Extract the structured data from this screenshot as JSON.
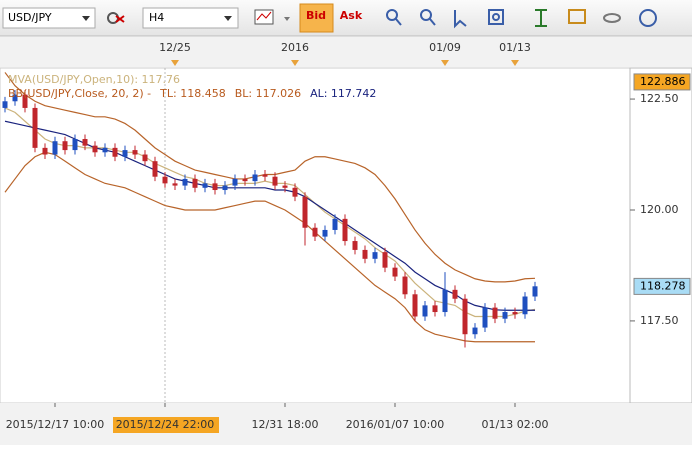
{
  "toolbar": {
    "symbol": "USD/JPY",
    "period": "H4",
    "bid": "Bid",
    "ask": "Ask"
  },
  "chart_data": {
    "type": "candlestick",
    "legend": [
      {
        "text": "MVA(USD/JPY,Open,10): 117.76",
        "color": "#cbb37c"
      }
    ],
    "legend2": [
      {
        "text": "BB(USD/JPY,Close, 20, 2) -",
        "color": "#b85a1e"
      },
      {
        "text": "TL: 118.458",
        "color": "#b85a1e"
      },
      {
        "text": "BL: 117.026",
        "color": "#b85a1e"
      },
      {
        "text": "AL: 117.742",
        "color": "#1a237e"
      }
    ],
    "categories": [
      null,
      null,
      null,
      null,
      null,
      "2015/12/17 10:00",
      null,
      null,
      null,
      null,
      null,
      null,
      null,
      null,
      null,
      null,
      "2015/12/24 22:00",
      null,
      null,
      null,
      null,
      null,
      null,
      null,
      null,
      null,
      null,
      null,
      "12/31 18:00",
      null,
      null,
      null,
      null,
      null,
      null,
      null,
      null,
      null,
      null,
      "2016/01/07 10:00",
      null,
      null,
      null,
      null,
      null,
      null,
      null,
      null,
      null,
      null,
      null,
      "01/13 02:00",
      null,
      null
    ],
    "top_categories": [
      null,
      null,
      null,
      null,
      null,
      null,
      null,
      null,
      null,
      null,
      null,
      null,
      null,
      null,
      null,
      null,
      null,
      "12/25",
      null,
      null,
      null,
      null,
      null,
      null,
      null,
      null,
      null,
      null,
      null,
      "2016",
      null,
      null,
      null,
      null,
      null,
      null,
      null,
      null,
      null,
      null,
      null,
      null,
      null,
      null,
      "01/09",
      null,
      null,
      null,
      null,
      null,
      null,
      "01/13",
      null,
      null
    ],
    "selected": 16,
    "open": [
      122.3,
      122.45,
      122.6,
      122.3,
      121.4,
      121.25,
      121.55,
      121.35,
      121.6,
      121.45,
      121.3,
      121.4,
      121.2,
      121.35,
      121.25,
      121.1,
      120.75,
      120.6,
      120.55,
      120.7,
      120.5,
      120.6,
      120.45,
      120.55,
      120.7,
      120.65,
      120.8,
      120.75,
      120.55,
      120.5,
      120.3,
      119.6,
      119.4,
      119.55,
      119.8,
      119.3,
      119.1,
      118.9,
      119.05,
      118.7,
      118.5,
      118.1,
      117.6,
      117.85,
      117.7,
      118.2,
      118.0,
      117.2,
      117.35,
      117.8,
      117.55,
      117.7,
      117.65,
      118.05
    ],
    "high": [
      122.55,
      122.7,
      122.7,
      122.4,
      121.5,
      121.65,
      121.65,
      121.7,
      121.7,
      121.55,
      121.5,
      121.5,
      121.45,
      121.45,
      121.35,
      121.2,
      120.85,
      120.7,
      120.8,
      120.8,
      120.7,
      120.7,
      120.65,
      120.8,
      120.8,
      120.9,
      120.9,
      120.85,
      120.65,
      120.6,
      120.4,
      119.7,
      119.65,
      119.9,
      119.9,
      119.4,
      119.2,
      119.15,
      119.15,
      118.8,
      118.6,
      118.2,
      117.95,
      117.95,
      118.6,
      118.3,
      118.1,
      117.45,
      117.9,
      117.9,
      117.8,
      117.8,
      118.15,
      118.38
    ],
    "low": [
      122.2,
      122.35,
      122.2,
      121.3,
      121.15,
      121.15,
      121.25,
      121.25,
      121.35,
      121.2,
      121.2,
      121.1,
      121.1,
      121.15,
      121.0,
      120.65,
      120.5,
      120.45,
      120.45,
      120.4,
      120.4,
      120.35,
      120.35,
      120.45,
      120.55,
      120.55,
      120.65,
      120.45,
      120.4,
      120.2,
      119.2,
      119.3,
      119.3,
      119.45,
      119.2,
      119.0,
      118.8,
      118.8,
      118.6,
      118.4,
      118.0,
      117.5,
      117.5,
      117.6,
      117.6,
      117.9,
      116.9,
      117.1,
      117.25,
      117.45,
      117.45,
      117.55,
      117.55,
      117.95
    ],
    "close": [
      122.45,
      122.6,
      122.3,
      121.4,
      121.25,
      121.55,
      121.35,
      121.6,
      121.45,
      121.3,
      121.4,
      121.2,
      121.35,
      121.25,
      121.1,
      120.75,
      120.6,
      120.55,
      120.7,
      120.5,
      120.6,
      120.45,
      120.55,
      120.7,
      120.65,
      120.8,
      120.75,
      120.55,
      120.5,
      120.3,
      119.6,
      119.4,
      119.55,
      119.8,
      119.3,
      119.1,
      118.9,
      119.05,
      118.7,
      118.5,
      118.1,
      117.6,
      117.85,
      117.7,
      118.2,
      118.0,
      117.2,
      117.35,
      117.8,
      117.55,
      117.7,
      117.65,
      118.05,
      118.28
    ],
    "up_color": "#1f4fbf",
    "down_color": "#c0262c",
    "series": [
      {
        "color": "#cbb37c",
        "values": [
          122.3,
          122.2,
          122.0,
          121.8,
          121.6,
          121.5,
          121.45,
          121.45,
          121.4,
          121.4,
          121.4,
          121.35,
          121.3,
          121.3,
          121.2,
          121.05,
          120.95,
          120.85,
          120.75,
          120.7,
          120.6,
          120.55,
          120.55,
          120.6,
          120.6,
          120.6,
          120.65,
          120.6,
          120.6,
          120.55,
          120.35,
          120.15,
          119.95,
          119.8,
          119.65,
          119.5,
          119.35,
          119.15,
          119.0,
          118.85,
          118.6,
          118.35,
          118.15,
          117.95,
          117.9,
          117.85,
          117.7,
          117.6,
          117.6,
          117.6,
          117.6,
          117.65,
          117.72,
          117.76
        ]
      },
      {
        "color": "#b8642a",
        "values": [
          123.1,
          122.8,
          122.6,
          122.45,
          122.35,
          122.3,
          122.25,
          122.2,
          122.15,
          122.1,
          122.1,
          122.05,
          121.95,
          121.8,
          121.6,
          121.4,
          121.25,
          121.1,
          121.0,
          120.9,
          120.85,
          120.8,
          120.75,
          120.7,
          120.7,
          120.75,
          120.8,
          120.8,
          120.85,
          120.9,
          121.1,
          121.2,
          121.2,
          121.15,
          121.1,
          121.05,
          120.95,
          120.8,
          120.55,
          120.25,
          119.9,
          119.55,
          119.25,
          119.0,
          118.8,
          118.65,
          118.55,
          118.45,
          118.4,
          118.38,
          118.38,
          118.4,
          118.45,
          118.46
        ]
      },
      {
        "color": "#b8642a",
        "values": [
          120.4,
          120.7,
          121.0,
          121.2,
          121.3,
          121.25,
          121.1,
          120.95,
          120.8,
          120.7,
          120.6,
          120.55,
          120.5,
          120.4,
          120.3,
          120.2,
          120.1,
          120.05,
          120.0,
          120.0,
          120.0,
          120.0,
          120.05,
          120.1,
          120.15,
          120.2,
          120.2,
          120.1,
          120.0,
          119.85,
          119.7,
          119.5,
          119.3,
          119.1,
          118.9,
          118.7,
          118.5,
          118.3,
          118.15,
          118.0,
          117.8,
          117.5,
          117.3,
          117.2,
          117.15,
          117.1,
          117.05,
          117.03,
          117.03,
          117.03,
          117.03,
          117.03,
          117.03,
          117.03
        ]
      },
      {
        "color": "#1a237e",
        "values": [
          122.0,
          121.95,
          121.9,
          121.85,
          121.8,
          121.75,
          121.7,
          121.6,
          121.5,
          121.4,
          121.35,
          121.3,
          121.2,
          121.1,
          121.0,
          120.9,
          120.8,
          120.7,
          120.65,
          120.6,
          120.55,
          120.5,
          120.5,
          120.5,
          120.5,
          120.5,
          120.5,
          120.45,
          120.45,
          120.4,
          120.3,
          120.15,
          120.0,
          119.85,
          119.7,
          119.55,
          119.4,
          119.25,
          119.1,
          118.95,
          118.8,
          118.6,
          118.45,
          118.3,
          118.2,
          118.1,
          117.95,
          117.85,
          117.8,
          117.75,
          117.74,
          117.74,
          117.74,
          117.74
        ]
      }
    ],
    "ylim": [
      115.65,
      123.2
    ],
    "yticks": [
      {
        "value": 117.5,
        "label": "117.50"
      },
      {
        "value": 120,
        "label": "120.00"
      },
      {
        "value": 122.5,
        "label": "122.50"
      }
    ],
    "price_markers": [
      {
        "value": 122.886,
        "color": "#f5a623"
      },
      {
        "value": 118.278,
        "color": "#a9dcf5"
      }
    ]
  }
}
